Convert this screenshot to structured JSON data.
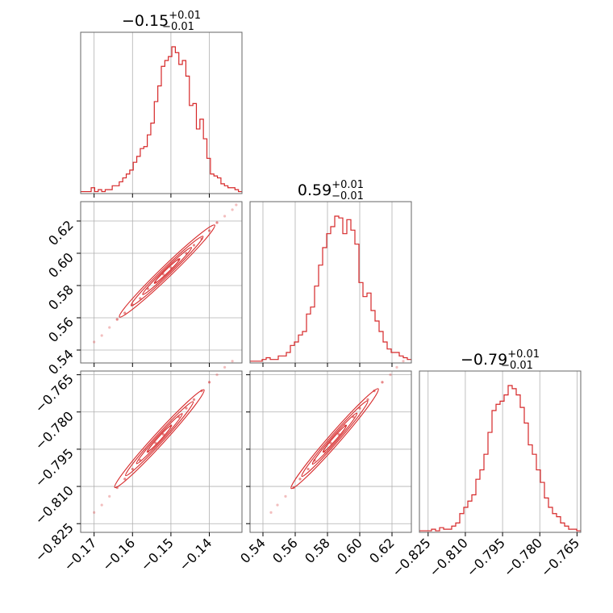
{
  "chart_data": {
    "type": "corner",
    "color": "#d62728",
    "grid": true,
    "parameters": [
      {
        "range": [
          -0.1735,
          -0.1315
        ],
        "ticks": [
          -0.17,
          -0.16,
          -0.15,
          -0.14
        ],
        "tick_labels": [
          "−0.17",
          "−0.16",
          "−0.15",
          "−0.14"
        ],
        "title_value": "−0.15",
        "title_plus": "+0.01",
        "title_minus": "−0.01",
        "hist_bins": [
          1,
          1,
          1,
          3,
          1,
          2,
          1,
          2,
          2,
          4,
          4,
          6,
          8,
          10,
          12,
          16,
          19,
          23,
          24,
          30,
          36,
          47,
          55,
          65,
          68,
          70,
          75,
          72,
          66,
          68,
          60,
          45,
          46,
          33,
          38,
          28,
          18,
          10,
          9,
          8,
          5,
          4,
          3,
          3,
          2,
          1
        ]
      },
      {
        "range": [
          0.532,
          0.632
        ],
        "ticks": [
          0.54,
          0.56,
          0.58,
          0.6,
          0.62
        ],
        "tick_labels": [
          "0.54",
          "0.56",
          "0.58",
          "0.60",
          "0.62"
        ],
        "title_value": "0.59",
        "title_plus": "+0.01",
        "title_minus": "−0.01",
        "hist_bins": [
          1,
          1,
          1,
          2,
          3,
          2,
          2,
          4,
          4,
          6,
          10,
          12,
          16,
          18,
          28,
          32,
          44,
          56,
          66,
          74,
          78,
          84,
          83,
          74,
          82,
          76,
          68,
          46,
          38,
          40,
          30,
          24,
          18,
          12,
          8,
          6,
          6,
          4,
          3,
          2
        ]
      },
      {
        "range": [
          -0.8285,
          -0.7635
        ],
        "ticks": [
          -0.825,
          -0.81,
          -0.795,
          -0.78,
          -0.765
        ],
        "tick_labels": [
          "−0.825",
          "−0.810",
          "−0.795",
          "−0.780",
          "−0.765"
        ],
        "title_value": "−0.79",
        "title_plus": "+0.01",
        "title_minus": "−0.01",
        "hist_bins": [
          1,
          1,
          1,
          2,
          1,
          3,
          2,
          2,
          4,
          6,
          12,
          16,
          20,
          24,
          34,
          40,
          50,
          64,
          78,
          82,
          84,
          88,
          94,
          92,
          88,
          80,
          70,
          56,
          50,
          40,
          32,
          22,
          16,
          12,
          10,
          6,
          4,
          2,
          2,
          1
        ]
      }
    ],
    "pairs": [
      {
        "x": 0,
        "y": 1,
        "points": [
          [
            -0.17,
            0.545
          ],
          [
            -0.168,
            0.549
          ],
          [
            -0.166,
            0.554
          ],
          [
            -0.164,
            0.559
          ],
          [
            -0.162,
            0.563
          ],
          [
            -0.16,
            0.568
          ],
          [
            -0.158,
            0.572
          ],
          [
            -0.156,
            0.578
          ],
          [
            -0.154,
            0.582
          ],
          [
            -0.152,
            0.587
          ],
          [
            -0.15,
            0.591
          ],
          [
            -0.148,
            0.596
          ],
          [
            -0.146,
            0.6
          ],
          [
            -0.144,
            0.605
          ],
          [
            -0.142,
            0.609
          ],
          [
            -0.14,
            0.614
          ],
          [
            -0.138,
            0.619
          ],
          [
            -0.136,
            0.623
          ],
          [
            -0.134,
            0.627
          ],
          [
            -0.133,
            0.63
          ]
        ]
      },
      {
        "x": 0,
        "y": 2,
        "points": [
          [
            -0.17,
            -0.8205
          ],
          [
            -0.168,
            -0.8175
          ],
          [
            -0.166,
            -0.814
          ],
          [
            -0.164,
            -0.8105
          ],
          [
            -0.162,
            -0.807
          ],
          [
            -0.16,
            -0.803
          ],
          [
            -0.158,
            -0.7995
          ],
          [
            -0.156,
            -0.796
          ],
          [
            -0.154,
            -0.7925
          ],
          [
            -0.152,
            -0.789
          ],
          [
            -0.15,
            -0.7855
          ],
          [
            -0.148,
            -0.782
          ],
          [
            -0.146,
            -0.7785
          ],
          [
            -0.144,
            -0.775
          ],
          [
            -0.142,
            -0.7715
          ],
          [
            -0.14,
            -0.768
          ],
          [
            -0.138,
            -0.765
          ],
          [
            -0.136,
            -0.762
          ],
          [
            -0.134,
            -0.7595
          ]
        ]
      },
      {
        "x": 1,
        "y": 2,
        "points": [
          [
            0.545,
            -0.8205
          ],
          [
            0.549,
            -0.8175
          ],
          [
            0.554,
            -0.814
          ],
          [
            0.559,
            -0.8105
          ],
          [
            0.563,
            -0.807
          ],
          [
            0.568,
            -0.803
          ],
          [
            0.572,
            -0.7995
          ],
          [
            0.578,
            -0.796
          ],
          [
            0.582,
            -0.7925
          ],
          [
            0.587,
            -0.789
          ],
          [
            0.591,
            -0.7855
          ],
          [
            0.596,
            -0.782
          ],
          [
            0.6,
            -0.7785
          ],
          [
            0.605,
            -0.775
          ],
          [
            0.609,
            -0.7715
          ],
          [
            0.614,
            -0.768
          ],
          [
            0.619,
            -0.765
          ],
          [
            0.623,
            -0.762
          ],
          [
            0.627,
            -0.7595
          ]
        ]
      }
    ]
  }
}
